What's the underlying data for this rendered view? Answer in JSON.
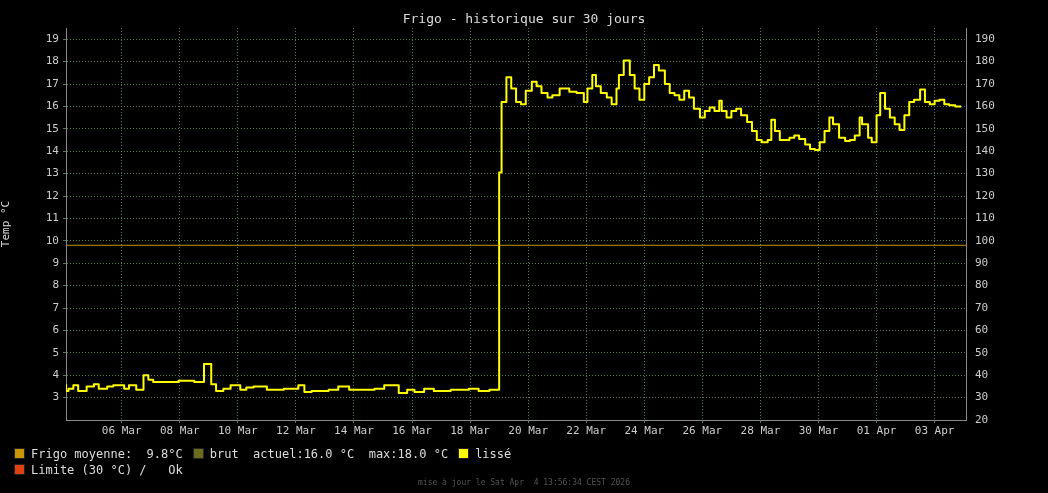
{
  "chart_data": {
    "type": "step",
    "title": "Frigo - historique sur 30 jours",
    "ylabel": "Temp °C",
    "x": [
      "2026-03-04T14:00",
      "2026-03-04T16:00",
      "2026-03-04T20:00",
      "2026-03-05T00:00",
      "2026-03-05T07:00",
      "2026-03-05T13:00",
      "2026-03-05T17:00",
      "2026-03-06T00:00",
      "2026-03-06T05:00",
      "2026-03-06T14:00",
      "2026-03-06T18:00",
      "2026-03-07T00:00",
      "2026-03-07T06:00",
      "2026-03-07T10:00",
      "2026-03-07T14:00",
      "2026-03-07T20:00",
      "2026-03-08T11:00",
      "2026-03-09T00:00",
      "2026-03-09T08:00",
      "2026-03-09T14:00",
      "2026-03-09T18:00",
      "2026-03-10T00:00",
      "2026-03-10T06:00",
      "2026-03-10T14:00",
      "2026-03-10T19:00",
      "2026-03-11T01:00",
      "2026-03-11T12:00",
      "2026-03-11T18:00",
      "2026-03-12T02:00",
      "2026-03-12T14:00",
      "2026-03-12T19:00",
      "2026-03-13T01:00",
      "2026-03-13T15:00",
      "2026-03-13T23:00",
      "2026-03-14T08:00",
      "2026-03-14T16:00",
      "2026-03-15T05:00",
      "2026-03-15T13:00",
      "2026-03-16T01:00",
      "2026-03-16T08:00",
      "2026-03-16T14:00",
      "2026-03-16T22:00",
      "2026-03-17T06:00",
      "2026-03-17T20:00",
      "2026-03-18T11:00",
      "2026-03-18T19:00",
      "2026-03-19T04:00",
      "2026-03-19T12:00",
      "2026-03-19T14:00",
      "2026-03-19T18:00",
      "2026-03-19T22:00",
      "2026-03-20T02:00",
      "2026-03-20T06:00",
      "2026-03-20T10:00",
      "2026-03-20T15:00",
      "2026-03-20T19:00",
      "2026-03-20T23:00",
      "2026-03-21T04:00",
      "2026-03-21T08:00",
      "2026-03-21T14:00",
      "2026-03-21T18:00",
      "2026-03-21T22:00",
      "2026-03-22T04:00",
      "2026-03-22T10:00",
      "2026-03-22T13:00",
      "2026-03-22T17:00",
      "2026-03-22T20:00",
      "2026-03-23T00:00",
      "2026-03-23T05:00",
      "2026-03-23T09:00",
      "2026-03-23T13:00",
      "2026-03-23T15:00",
      "2026-03-23T19:00",
      "2026-03-24T00:00",
      "2026-03-24T04:00",
      "2026-03-24T08:00",
      "2026-03-24T12:00",
      "2026-03-24T16:00",
      "2026-03-24T20:00",
      "2026-03-25T00:00",
      "2026-03-25T05:00",
      "2026-03-25T09:00",
      "2026-03-25T13:00",
      "2026-03-25T17:00",
      "2026-03-25T21:00",
      "2026-03-26T01:00",
      "2026-03-26T05:00",
      "2026-03-26T10:00",
      "2026-03-26T14:00",
      "2026-03-26T18:00",
      "2026-03-26T22:00",
      "2026-03-27T02:00",
      "2026-03-27T04:00",
      "2026-03-27T08:00",
      "2026-03-27T12:00",
      "2026-03-27T16:00",
      "2026-03-27T20:00",
      "2026-03-28T01:00",
      "2026-03-28T05:00",
      "2026-03-28T09:00",
      "2026-03-28T13:00",
      "2026-03-28T18:00",
      "2026-03-28T21:00",
      "2026-03-29T00:00",
      "2026-03-29T04:00",
      "2026-03-29T08:00",
      "2026-03-29T12:00",
      "2026-03-29T16:00",
      "2026-03-29T20:00",
      "2026-03-30T01:00",
      "2026-03-30T05:00",
      "2026-03-30T09:00",
      "2026-03-30T13:00",
      "2026-03-30T17:00",
      "2026-03-30T21:00",
      "2026-03-31T00:00",
      "2026-03-31T05:00",
      "2026-03-31T10:00",
      "2026-03-31T14:00",
      "2026-03-31T18:00",
      "2026-03-31T22:00",
      "2026-04-01T00:00",
      "2026-04-01T05:00",
      "2026-04-01T08:00",
      "2026-04-01T12:00",
      "2026-04-01T15:00",
      "2026-04-01T19:00",
      "2026-04-01T23:00",
      "2026-04-02T03:00",
      "2026-04-02T07:00",
      "2026-04-02T11:00",
      "2026-04-02T15:00",
      "2026-04-02T19:00",
      "2026-04-03T00:00",
      "2026-04-03T04:00",
      "2026-04-03T08:00",
      "2026-04-03T12:00",
      "2026-04-03T16:00",
      "2026-04-03T20:00",
      "2026-04-04T00:00",
      "2026-04-04T05:00",
      "2026-04-04T10:00"
    ],
    "series": [
      {
        "name": "lissé",
        "color": "#ffff00",
        "values": [
          3.6,
          3.3,
          3.4,
          3.55,
          3.3,
          3.5,
          3.6,
          3.4,
          3.5,
          3.55,
          3.4,
          3.55,
          3.35,
          4.0,
          3.8,
          3.7,
          3.7,
          3.75,
          3.7,
          4.5,
          3.6,
          3.3,
          3.4,
          3.55,
          3.35,
          3.45,
          3.5,
          3.35,
          3.35,
          3.4,
          3.55,
          3.25,
          3.3,
          3.35,
          3.5,
          3.35,
          3.35,
          3.4,
          3.55,
          3.2,
          3.35,
          3.25,
          3.4,
          3.3,
          3.35,
          3.4,
          3.3,
          3.35,
          13.05,
          16.2,
          17.3,
          16.8,
          16.2,
          16.1,
          16.7,
          17.1,
          16.9,
          16.6,
          16.4,
          16.5,
          16.8,
          16.8,
          16.65,
          16.6,
          16.2,
          16.8,
          17.4,
          16.9,
          16.6,
          16.4,
          16.1,
          16.8,
          17.4,
          18.05,
          17.4,
          16.8,
          16.3,
          17.0,
          17.3,
          17.85,
          17.6,
          17.0,
          16.6,
          16.5,
          16.3,
          16.7,
          16.4,
          15.9,
          15.5,
          15.8,
          15.95,
          15.8,
          16.25,
          15.8,
          15.5,
          15.8,
          15.9,
          15.6,
          15.3,
          14.9,
          14.5,
          14.4,
          14.5,
          15.4,
          14.9,
          14.5,
          14.5,
          14.6,
          14.7,
          14.55,
          14.3,
          14.1,
          14.05,
          14.4,
          14.9,
          15.5,
          15.2,
          14.6,
          14.45,
          14.5,
          14.7,
          15.5,
          15.2,
          14.6,
          14.4,
          15.6,
          16.6,
          15.9,
          15.5,
          15.2,
          14.95,
          15.6,
          16.2,
          16.3,
          16.75,
          16.2,
          16.1,
          16.25,
          16.3,
          16.1,
          16.05,
          16.0
        ]
      }
    ],
    "xlim": [
      "2026-03-04T13:56",
      "2026-04-04T13:56"
    ],
    "xticks": [
      {
        "value": "2026-03-06T12:00",
        "label": "06 Mar"
      },
      {
        "value": "2026-03-08T12:00",
        "label": "08 Mar"
      },
      {
        "value": "2026-03-10T12:00",
        "label": "10 Mar"
      },
      {
        "value": "2026-03-12T12:00",
        "label": "12 Mar"
      },
      {
        "value": "2026-03-14T12:00",
        "label": "14 Mar"
      },
      {
        "value": "2026-03-16T12:00",
        "label": "16 Mar"
      },
      {
        "value": "2026-03-18T12:00",
        "label": "18 Mar"
      },
      {
        "value": "2026-03-20T12:00",
        "label": "20 Mar"
      },
      {
        "value": "2026-03-22T12:00",
        "label": "22 Mar"
      },
      {
        "value": "2026-03-24T12:00",
        "label": "24 Mar"
      },
      {
        "value": "2026-03-26T12:00",
        "label": "26 Mar"
      },
      {
        "value": "2026-03-28T12:00",
        "label": "28 Mar"
      },
      {
        "value": "2026-03-30T12:00",
        "label": "30 Mar"
      },
      {
        "value": "2026-04-01T12:00",
        "label": "01 Apr"
      },
      {
        "value": "2026-04-03T12:00",
        "label": "03 Apr"
      }
    ],
    "ylim": [
      2,
      19.5
    ],
    "yticks": [
      3,
      4,
      5,
      6,
      7,
      8,
      9,
      10,
      11,
      12,
      13,
      14,
      15,
      16,
      17,
      18,
      19
    ],
    "y2lim": [
      20,
      195
    ],
    "y2ticks": [
      20,
      30,
      40,
      50,
      60,
      70,
      80,
      90,
      100,
      110,
      120,
      130,
      140,
      150,
      160,
      170,
      180,
      190
    ],
    "ref_lines": [
      {
        "axis": "y",
        "value": 9.8,
        "label": "Frigo moyenne:  9.8°C",
        "color": "#c89600"
      }
    ],
    "annotations": [
      "brut  actuel:16.0 °C  max:18.0 °C",
      "Limite (30 °C) /   Ok",
      "mise à jour le Sat Apr  4 13:56:34 CEST 2026"
    ],
    "grid": true,
    "legend": "bottom",
    "line_style": "solid",
    "marker": "none"
  }
}
